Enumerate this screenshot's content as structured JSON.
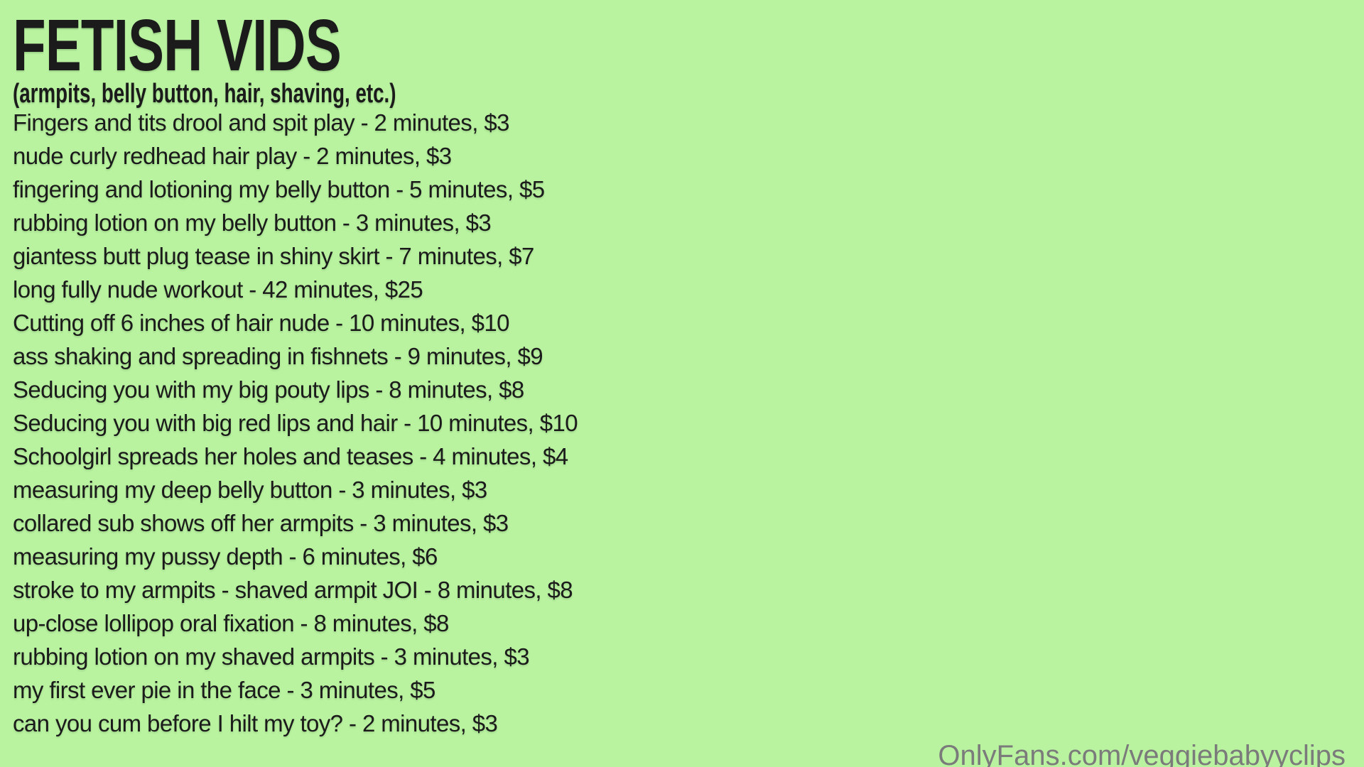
{
  "page": {
    "background_color": "#b9f3a0",
    "text_color": "#1b1b1b",
    "watermark_color": "#7b7b7b"
  },
  "header": {
    "title": "FETISH VIDS",
    "subtitle": "(armpits, belly button, hair, shaving, etc.)"
  },
  "videos": [
    {
      "text": "Fingers and tits drool and spit play - 2 minutes, $3",
      "duration": "2 minutes",
      "price": "$3"
    },
    {
      "text": "nude curly redhead hair play - 2 minutes, $3",
      "duration": "2 minutes",
      "price": "$3"
    },
    {
      "text": "fingering and lotioning my belly button - 5 minutes, $5",
      "duration": "5 minutes",
      "price": "$5"
    },
    {
      "text": "rubbing lotion on my belly button - 3 minutes, $3",
      "duration": "3 minutes",
      "price": "$3"
    },
    {
      "text": "giantess butt plug tease in shiny skirt - 7 minutes, $7",
      "duration": "7 minutes",
      "price": "$7"
    },
    {
      "text": "long fully nude workout - 42 minutes, $25",
      "duration": "42 minutes",
      "price": "$25"
    },
    {
      "text": "Cutting off 6 inches of hair nude - 10 minutes, $10",
      "duration": "10 minutes",
      "price": "$10"
    },
    {
      "text": "ass shaking and spreading in fishnets - 9 minutes, $9",
      "duration": "9 minutes",
      "price": "$9"
    },
    {
      "text": "Seducing you with my big pouty lips - 8 minutes, $8",
      "duration": "8 minutes",
      "price": "$8"
    },
    {
      "text": "Seducing you with big red lips and hair - 10 minutes, $10",
      "duration": "10 minutes",
      "price": "$10"
    },
    {
      "text": "Schoolgirl spreads her holes and teases - 4 minutes, $4",
      "duration": "4 minutes",
      "price": "$4"
    },
    {
      "text": "measuring my deep belly button - 3 minutes, $3",
      "duration": "3 minutes",
      "price": "$3"
    },
    {
      "text": "collared sub shows off her armpits - 3 minutes, $3",
      "duration": "3 minutes",
      "price": "$3"
    },
    {
      "text": "measuring my pussy depth - 6 minutes, $6",
      "duration": "6 minutes",
      "price": "$6"
    },
    {
      "text": "stroke to my armpits - shaved armpit JOI - 8 minutes, $8",
      "duration": "8 minutes",
      "price": "$8"
    },
    {
      "text": "up-close lollipop oral fixation - 8 minutes, $8",
      "duration": "8 minutes",
      "price": "$8"
    },
    {
      "text": "rubbing lotion on my shaved armpits - 3 minutes, $3",
      "duration": "3 minutes",
      "price": "$3"
    },
    {
      "text": "my first ever pie in the face - 3 minutes, $5",
      "duration": "3 minutes",
      "price": "$5"
    },
    {
      "text": "can you cum before I hilt my toy? - 2 minutes, $3",
      "duration": "2 minutes",
      "price": "$3"
    }
  ],
  "watermark": {
    "text": "OnlyFans.com/veggiebabyyclips"
  }
}
